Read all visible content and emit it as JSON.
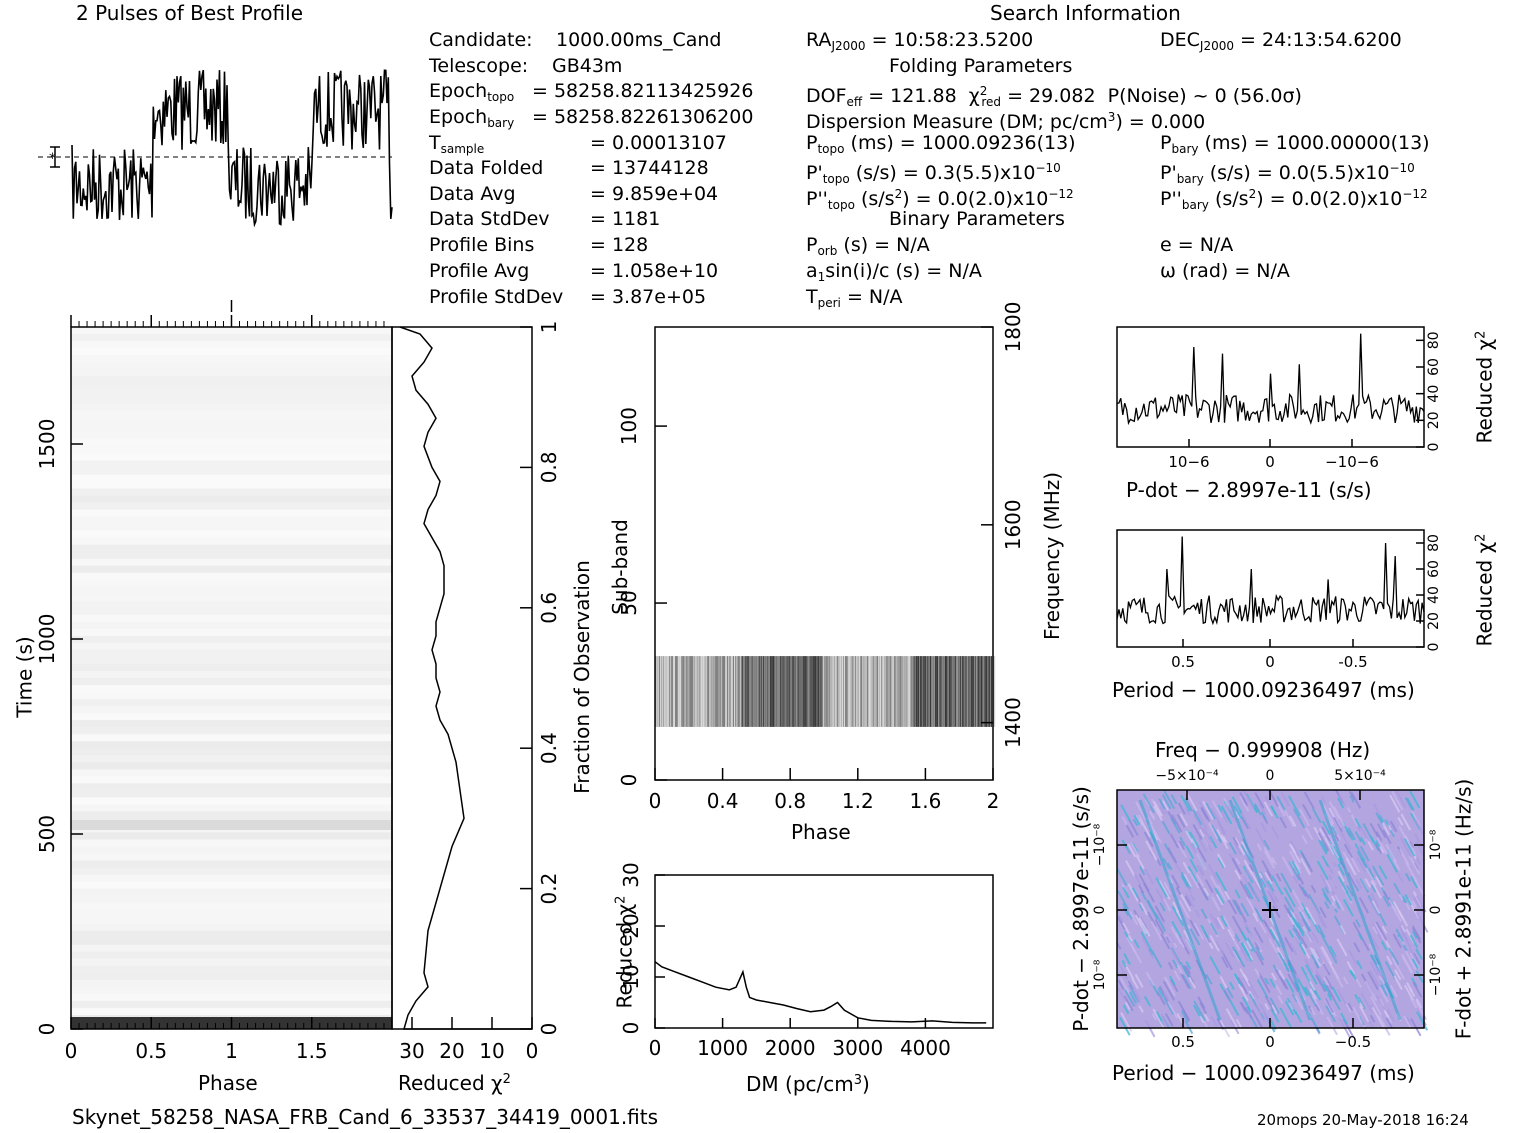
{
  "header": {
    "profile_title": "2 Pulses of Best Profile",
    "search_title": "Search Information",
    "folding_title": "Folding Parameters",
    "binary_title": "Binary Parameters"
  },
  "info_left": [
    {
      "label": "Candidate:",
      "value": "1000.00ms_Cand"
    },
    {
      "label": "Telescope:",
      "value": "GB43m"
    },
    {
      "label": "Epoch_topo",
      "value": "= 58258.82113425926"
    },
    {
      "label": "Epoch_bary",
      "value": "= 58258.82261306200"
    },
    {
      "label": "T_sample",
      "value": "=  0.00013107"
    },
    {
      "label": "Data Folded",
      "value": "=  13744128"
    },
    {
      "label": "Data Avg",
      "value": "=  9.859e+04"
    },
    {
      "label": "Data StdDev",
      "value": "=  1181"
    },
    {
      "label": "Profile Bins",
      "value": "=  128"
    },
    {
      "label": "Profile Avg",
      "value": "=  1.058e+10"
    },
    {
      "label": "Profile StdDev",
      "value": "=  3.87e+05"
    }
  ],
  "search": {
    "ra": "= 10:58:23.5200",
    "dec": "= 24:13:54.6200",
    "dof": "= 121.88",
    "chi2": "= 29.082",
    "pnoise": "P(Noise) ~ 0    (56.0σ)",
    "dm": "Dispersion Measure (DM; pc/cm",
    "dm_val": ") = 0.000",
    "ptopo": "(ms) =   1000.09236(13)",
    "pbary": "(ms) =   1000.00000(13)",
    "pdtopo": "(s/s) =   0.3(5.5)x10",
    "pdbary": "(s/s) = 0.0(5.5)x10",
    "pddtopo": "(s/s",
    "pddtopo2": ") = 0.0(2.0)x10",
    "pddbary": "(s/s",
    "pddbary2": ") = 0.0(2.0)x10",
    "porb": "(s) = N/A",
    "e": "e = N/A",
    "a1": "sin(i)/c (s) = N/A",
    "omega": "ω (rad) = N/A",
    "tperi": "= N/A"
  },
  "axes": {
    "time_label": "Time (s)",
    "phase_label": "Phase",
    "redchi_label": "Reduced χ",
    "fraction_label": "Fraction of Observation",
    "subband_label": "Sub-band",
    "freq_label": "Frequency (MHz)",
    "dm_label": "DM (pc/cm",
    "pdot_label": "P-dot − 2.8997e-11 (s/s)",
    "period_label": "Period − 1000.09236497 (ms)",
    "period_label2": "Period − 1000.09236497 (ms)",
    "freq_top_label": "Freq − 0.999908 (Hz)",
    "pdot_left_label": "P-dot − 2.8997e-11 (s/s)",
    "fdot_right_label": "F-dot + 2.8991e-11 (Hz/s)",
    "reduced_chi_side": "Reduced χ"
  },
  "footer": {
    "filename": "Skynet_58258_NASA_FRB_Cand_6_33537_34419_0001.fits",
    "stamp": "20mops 20-May-2018 16:24"
  },
  "chart_data": [
    {
      "type": "line",
      "title": "2 Pulses of Best Profile",
      "xlabel": "Phase",
      "xlim": [
        0,
        2
      ],
      "description": "pulse profile shown for two rotations"
    },
    {
      "type": "heatmap",
      "xlabel": "Phase",
      "ylabel": "Time (s)",
      "xlim": [
        0,
        2
      ],
      "ylim": [
        0,
        1800
      ],
      "xticks": [
        0,
        0.5,
        1,
        1.5
      ],
      "yticks": [
        0,
        500,
        1000,
        1500
      ]
    },
    {
      "type": "line",
      "xlabel": "Reduced χ2",
      "ylabel": "Fraction of Observation",
      "xlim": [
        35,
        0
      ],
      "ylim": [
        0,
        1
      ],
      "xticks": [
        30,
        20,
        10,
        0
      ],
      "yticks": [
        0,
        0.2,
        0.4,
        0.6,
        0.8,
        1
      ],
      "x": [
        33,
        28,
        25,
        27,
        30,
        29,
        26,
        24,
        26,
        27,
        25,
        23,
        24,
        26,
        27,
        25,
        23,
        22,
        22,
        22,
        23,
        24,
        24,
        25,
        24,
        24,
        23,
        24,
        23,
        21,
        19,
        18,
        17,
        20,
        23,
        26,
        27,
        26,
        29,
        31,
        32
      ],
      "y": [
        1.0,
        0.99,
        0.97,
        0.95,
        0.93,
        0.91,
        0.89,
        0.87,
        0.85,
        0.83,
        0.8,
        0.78,
        0.76,
        0.74,
        0.72,
        0.7,
        0.68,
        0.66,
        0.64,
        0.62,
        0.6,
        0.58,
        0.56,
        0.54,
        0.52,
        0.5,
        0.48,
        0.46,
        0.44,
        0.42,
        0.38,
        0.34,
        0.3,
        0.26,
        0.2,
        0.14,
        0.08,
        0.06,
        0.04,
        0.02,
        0.0
      ]
    },
    {
      "type": "heatmap",
      "xlabel": "Phase",
      "ylabel": "Sub-band",
      "xlim": [
        0,
        2
      ],
      "ylim": [
        0,
        128
      ],
      "xticks": [
        0,
        0.4,
        0.8,
        1.2,
        1.6,
        2
      ],
      "yticks": [
        0,
        50,
        100
      ],
      "y2label": "Frequency (MHz)",
      "y2ticks": [
        1400,
        1600,
        1800
      ]
    },
    {
      "type": "line",
      "xlabel": "DM (pc/cm3)",
      "ylabel": "Reduced χ2",
      "xlim": [
        0,
        5000
      ],
      "ylim": [
        0,
        30
      ],
      "xticks": [
        0,
        1000,
        2000,
        3000,
        4000
      ],
      "yticks": [
        0,
        10,
        20,
        30
      ],
      "x": [
        0,
        100,
        300,
        500,
        700,
        900,
        1100,
        1200,
        1300,
        1350,
        1400,
        1500,
        1700,
        1900,
        2100,
        2300,
        2500,
        2600,
        2700,
        2800,
        3000,
        3200,
        3500,
        3800,
        4100,
        4400,
        4700,
        4900
      ],
      "y": [
        13,
        12,
        11,
        10,
        9,
        8,
        7.5,
        8,
        11,
        8,
        6,
        5.5,
        5,
        4.5,
        3.8,
        3.2,
        3.5,
        4.2,
        5,
        3.5,
        2,
        1.5,
        1.3,
        1.2,
        1.4,
        1.1,
        1.0,
        1.0
      ]
    },
    {
      "type": "line",
      "xlabel": "P-dot − 2.8997e-11 (s/s)",
      "ylabel": "Reduced χ2",
      "ylim": [
        0,
        90
      ],
      "yticks": [
        0,
        20,
        40,
        60,
        80
      ],
      "xticks": [
        "10−6",
        "0",
        "−10−6"
      ]
    },
    {
      "type": "line",
      "xlabel": "Period − 1000.09236497 (ms)",
      "ylabel": "Reduced χ2",
      "ylim": [
        0,
        90
      ],
      "yticks": [
        0,
        20,
        40,
        60,
        80
      ],
      "xticks": [
        0.5,
        0,
        -0.5
      ]
    },
    {
      "type": "heatmap",
      "title": "Freq − 0.999908 (Hz)",
      "xlabel": "Period − 1000.09236497 (ms)",
      "ylabel": "P-dot − 2.8997e-11 (s/s)",
      "xticks": [
        0.5,
        0,
        -0.5
      ],
      "topticks": [
        "−5×10−4",
        "0",
        "5×10−4"
      ]
    }
  ]
}
